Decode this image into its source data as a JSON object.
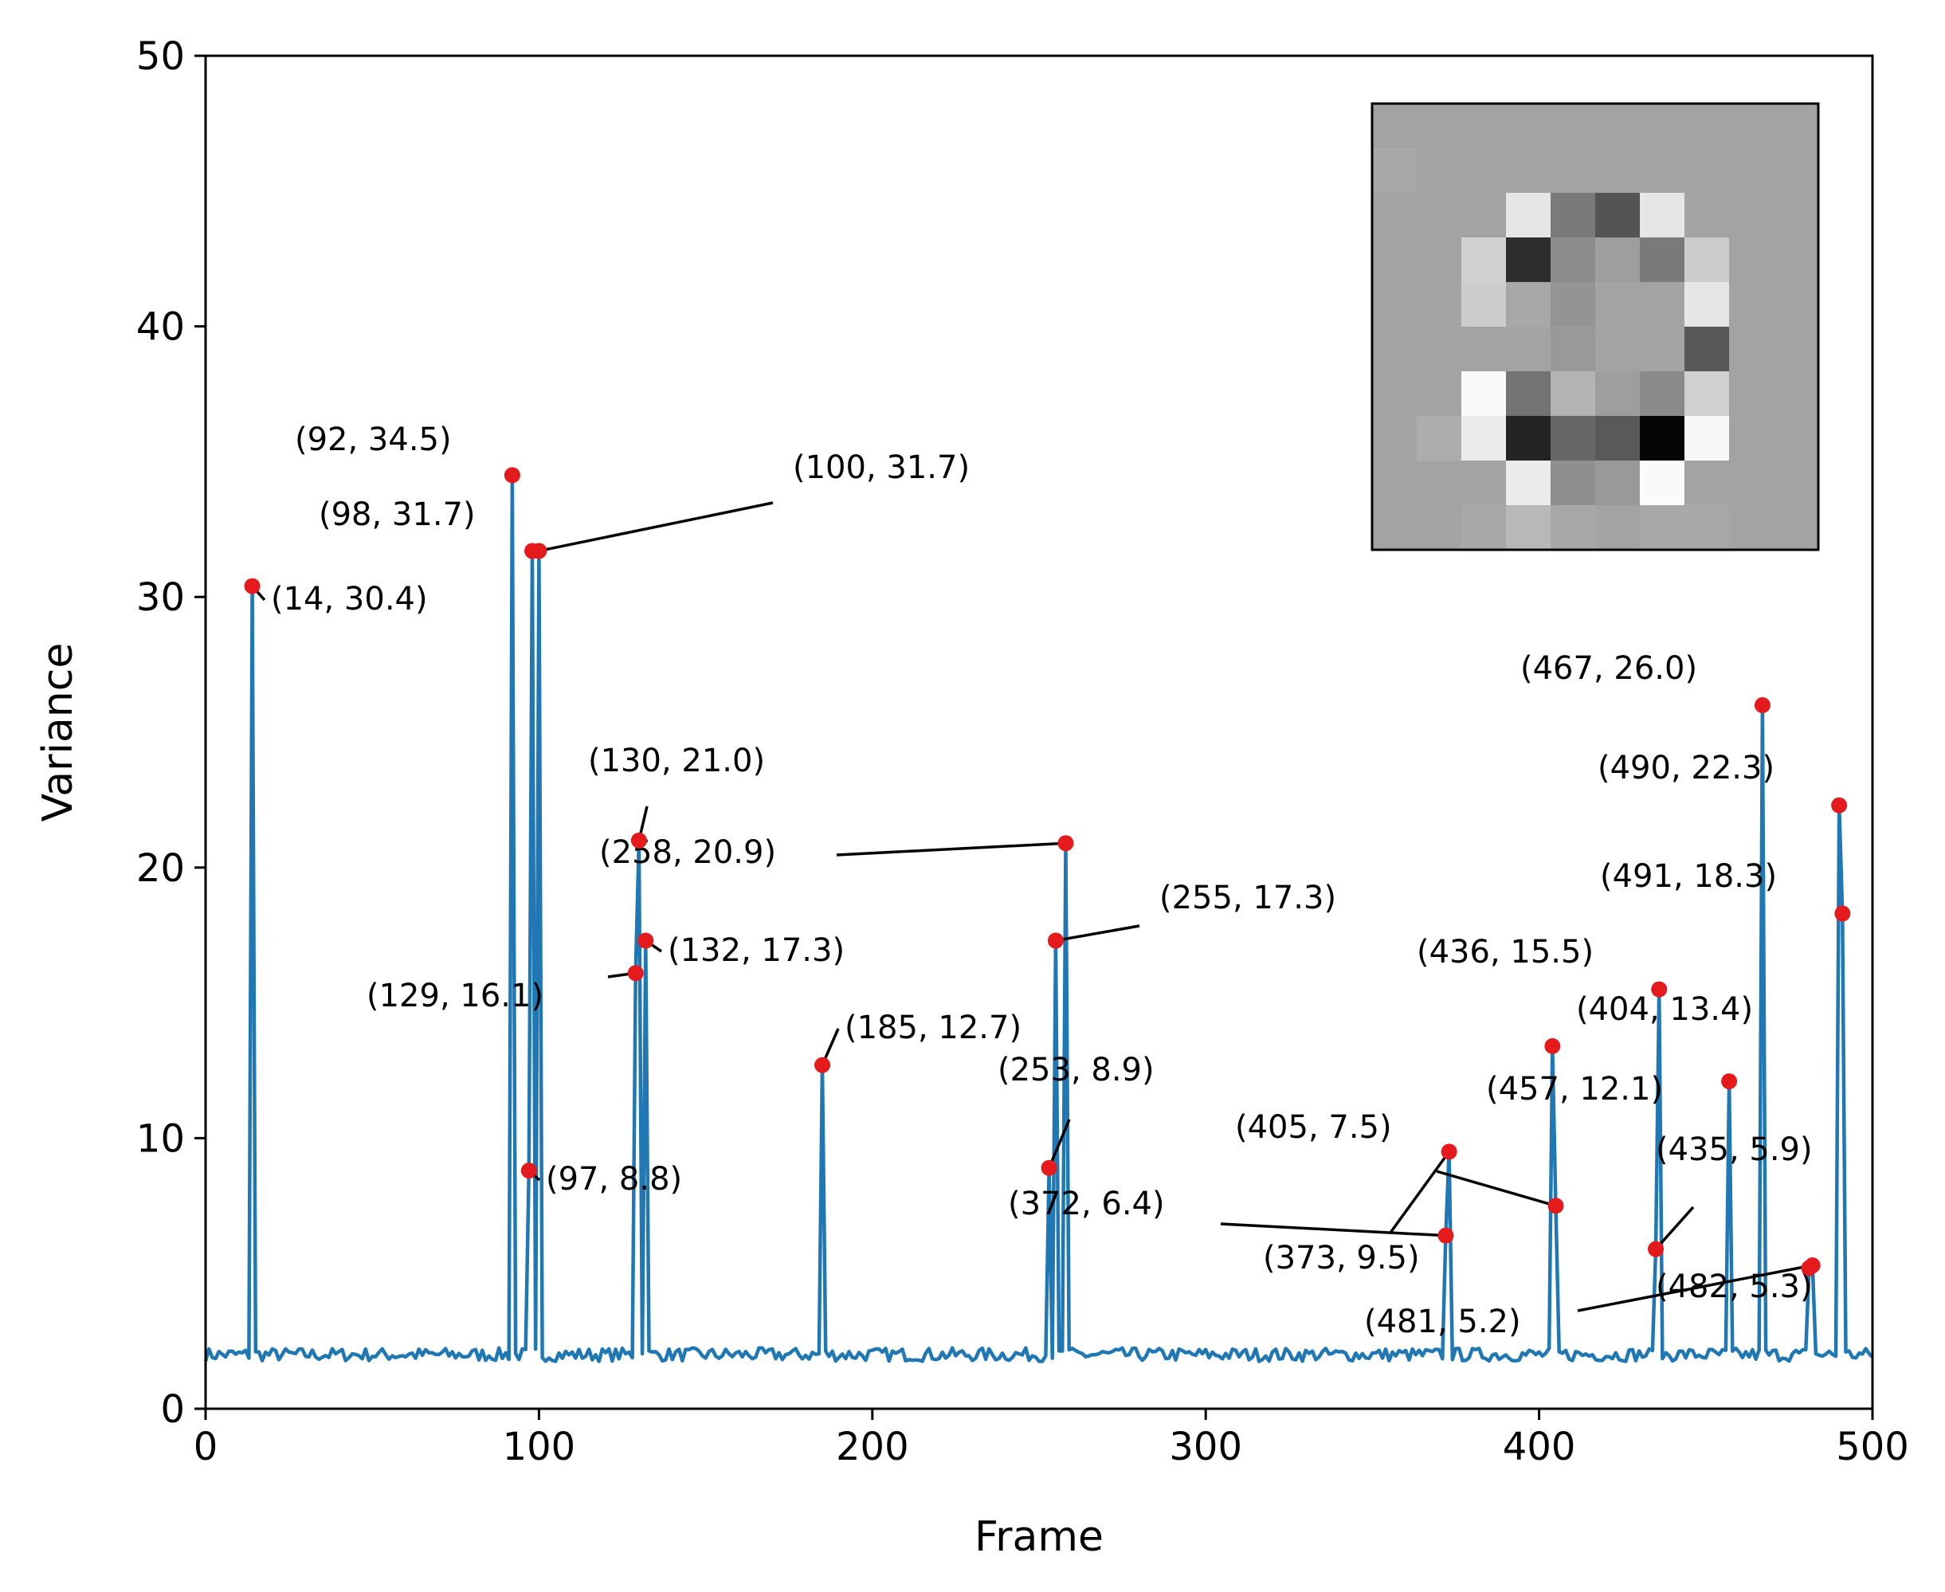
{
  "chart_data": {
    "type": "line",
    "title": "",
    "xlabel": "Frame",
    "ylabel": "Variance",
    "xlim": [
      0,
      500
    ],
    "ylim": [
      0,
      50
    ],
    "xticks": [
      0,
      100,
      200,
      300,
      400,
      500
    ],
    "xtick_labels": [
      "0",
      "100",
      "200",
      "300",
      "400",
      "500"
    ],
    "yticks": [
      0,
      10,
      20,
      30,
      40,
      50
    ],
    "ytick_labels": [
      "0",
      "10",
      "20",
      "30",
      "40",
      "50"
    ],
    "grid": false,
    "line_color": "#1f77b4",
    "marker_color": "#e41a1c",
    "baseline": 2.0,
    "peaks": [
      {
        "x": 14,
        "y": 30.4,
        "label": "(14, 30.4)"
      },
      {
        "x": 92,
        "y": 34.5,
        "label": "(92, 34.5)"
      },
      {
        "x": 97,
        "y": 8.8,
        "label": "(97, 8.8)"
      },
      {
        "x": 98,
        "y": 31.7,
        "label": "(98, 31.7)"
      },
      {
        "x": 100,
        "y": 31.7,
        "label": "(100, 31.7)"
      },
      {
        "x": 129,
        "y": 16.1,
        "label": "(129, 16.1)"
      },
      {
        "x": 130,
        "y": 21.0,
        "label": "(130, 21.0)"
      },
      {
        "x": 132,
        "y": 17.3,
        "label": "(132, 17.3)"
      },
      {
        "x": 185,
        "y": 12.7,
        "label": "(185, 12.7)"
      },
      {
        "x": 253,
        "y": 8.9,
        "label": "(253, 8.9)"
      },
      {
        "x": 255,
        "y": 17.3,
        "label": "(255, 17.3)"
      },
      {
        "x": 258,
        "y": 20.9,
        "label": "(258, 20.9)"
      },
      {
        "x": 372,
        "y": 6.4,
        "label": "(372, 6.4)"
      },
      {
        "x": 373,
        "y": 9.5,
        "label": "(373, 9.5)"
      },
      {
        "x": 404,
        "y": 13.4,
        "label": "(404, 13.4)"
      },
      {
        "x": 405,
        "y": 7.5,
        "label": "(405, 7.5)"
      },
      {
        "x": 435,
        "y": 5.9,
        "label": "(435, 5.9)"
      },
      {
        "x": 436,
        "y": 15.5,
        "label": "(436, 15.5)"
      },
      {
        "x": 457,
        "y": 12.1,
        "label": "(457, 12.1)"
      },
      {
        "x": 467,
        "y": 26.0,
        "label": "(467, 26.0)"
      },
      {
        "x": 481,
        "y": 5.2,
        "label": "(481, 5.2)"
      },
      {
        "x": 482,
        "y": 5.3,
        "label": "(482, 5.3)"
      },
      {
        "x": 490,
        "y": 22.3,
        "label": "(490, 22.3)"
      },
      {
        "x": 491,
        "y": 18.3,
        "label": "(491, 18.3)"
      }
    ],
    "inset_image": {
      "colormap": "gray",
      "rows": 10,
      "cols": 10,
      "values": [
        [
          0.64,
          0.64,
          0.64,
          0.64,
          0.64,
          0.64,
          0.64,
          0.64,
          0.64,
          0.64
        ],
        [
          0.66,
          0.64,
          0.64,
          0.64,
          0.64,
          0.64,
          0.64,
          0.64,
          0.64,
          0.64
        ],
        [
          0.64,
          0.64,
          0.64,
          0.9,
          0.48,
          0.33,
          0.9,
          0.64,
          0.64,
          0.64
        ],
        [
          0.64,
          0.64,
          0.82,
          0.18,
          0.55,
          0.62,
          0.48,
          0.8,
          0.64,
          0.64
        ],
        [
          0.64,
          0.64,
          0.8,
          0.66,
          0.58,
          0.64,
          0.64,
          0.9,
          0.64,
          0.64
        ],
        [
          0.64,
          0.64,
          0.64,
          0.64,
          0.6,
          0.64,
          0.64,
          0.34,
          0.64,
          0.64
        ],
        [
          0.64,
          0.64,
          0.98,
          0.45,
          0.7,
          0.62,
          0.54,
          0.82,
          0.64,
          0.64
        ],
        [
          0.64,
          0.68,
          0.92,
          0.14,
          0.4,
          0.35,
          0.02,
          0.97,
          0.64,
          0.64
        ],
        [
          0.64,
          0.64,
          0.64,
          0.92,
          0.56,
          0.6,
          0.98,
          0.64,
          0.64,
          0.64
        ],
        [
          0.64,
          0.64,
          0.66,
          0.72,
          0.66,
          0.64,
          0.66,
          0.66,
          0.64,
          0.64
        ]
      ]
    }
  }
}
